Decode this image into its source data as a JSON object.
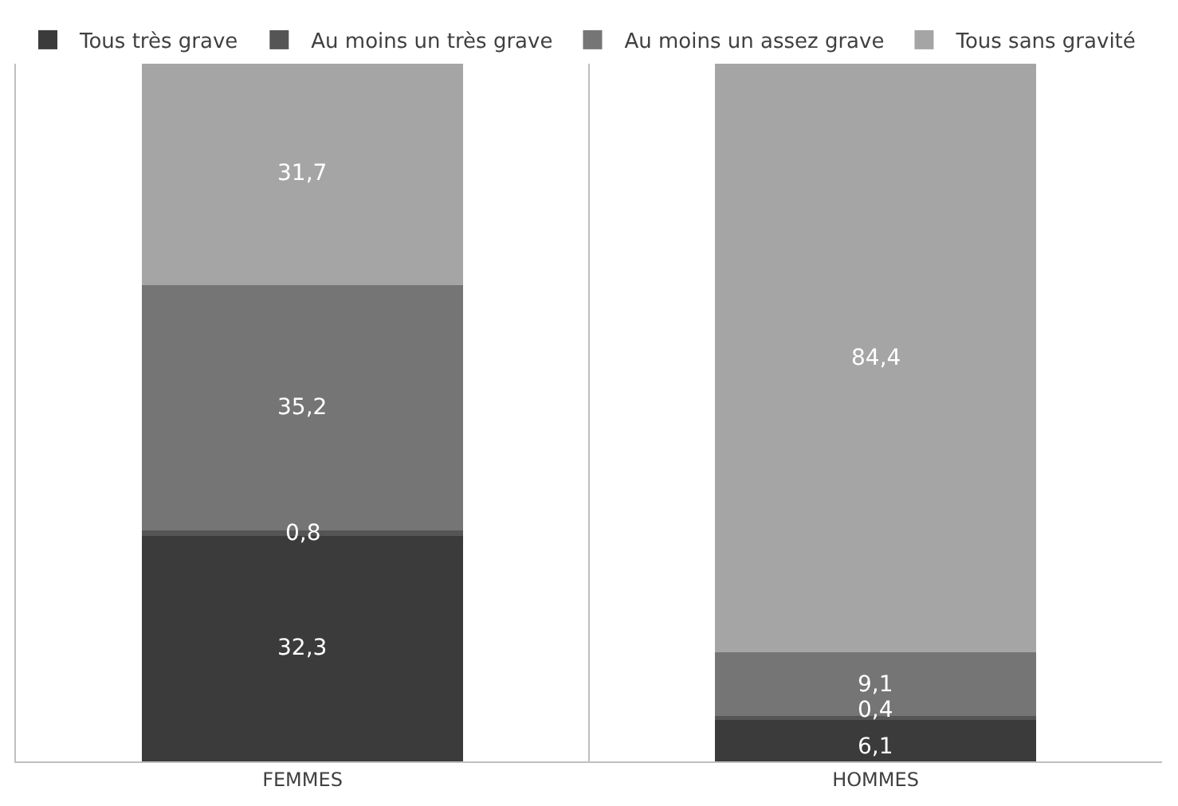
{
  "chart_data": {
    "type": "bar",
    "stacked": true,
    "categories": [
      "FEMMES",
      "HOMMES"
    ],
    "series": [
      {
        "name": "Tous très grave",
        "color": "#3b3b3b",
        "values": [
          32.3,
          6.1
        ],
        "value_labels": [
          "32,3",
          "6,1"
        ]
      },
      {
        "name": "Au moins un très grave",
        "color": "#555555",
        "values": [
          0.8,
          0.4
        ],
        "value_labels": [
          "0,8",
          "0,4"
        ]
      },
      {
        "name": "Au moins un assez grave",
        "color": "#757575",
        "values": [
          35.2,
          9.1
        ],
        "value_labels": [
          "35,2",
          "9,1"
        ]
      },
      {
        "name": "Tous sans gravité",
        "color": "#a5a5a5",
        "values": [
          31.7,
          84.4
        ],
        "value_labels": [
          "31,7",
          "84,4"
        ]
      }
    ],
    "ylim": [
      0,
      100
    ],
    "tick_labels": "x",
    "grid": "x",
    "legend": "top left"
  }
}
